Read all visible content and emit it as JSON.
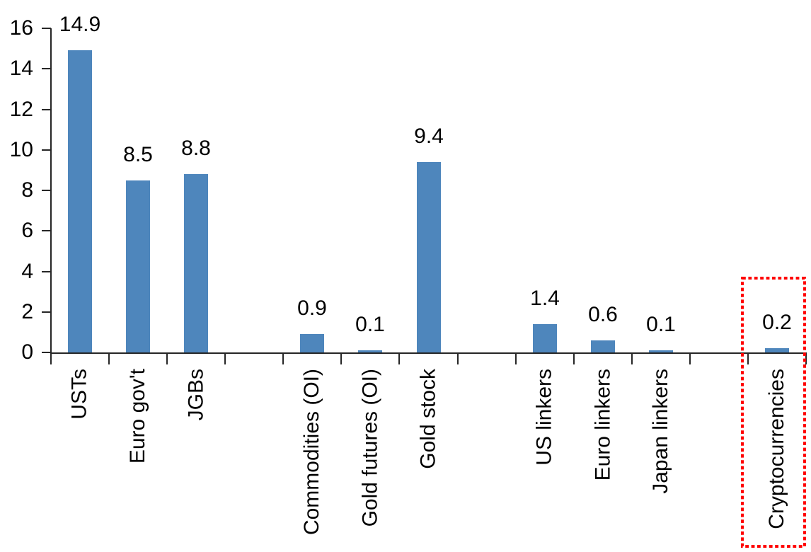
{
  "chart_data": {
    "type": "bar",
    "title": "",
    "xlabel": "",
    "ylabel": "",
    "categories": [
      "USTs",
      "Euro gov't",
      "JGBs",
      "Commodities (OI)",
      "Gold futures (OI)",
      "Gold stock",
      "US linkers",
      "Euro linkers",
      "Japan linkers",
      "Cryptocurrencies"
    ],
    "values": [
      14.9,
      8.5,
      8.8,
      0.9,
      0.1,
      9.4,
      1.4,
      0.6,
      0.1,
      0.2
    ],
    "data_labels": [
      "14.9",
      "8.5",
      "8.8",
      "0.9",
      "0.1",
      "9.4",
      "1.4",
      "0.6",
      "0.1",
      "0.2"
    ],
    "group_slot_indices": [
      0,
      1,
      2,
      4,
      5,
      6,
      8,
      9,
      10,
      12
    ],
    "total_slots": 13,
    "ylim": [
      0,
      16
    ],
    "ytick_step": 2,
    "ytick_labels": [
      "0",
      "2",
      "4",
      "6",
      "8",
      "10",
      "12",
      "14",
      "16"
    ],
    "grid": false,
    "legend": "none",
    "bar_color": "#4E86BC",
    "axis_color": "#262626",
    "text_color": "#000000",
    "highlight": {
      "category": "Cryptocurrencies",
      "style": "dotted-box",
      "color": "#FF0000"
    }
  }
}
